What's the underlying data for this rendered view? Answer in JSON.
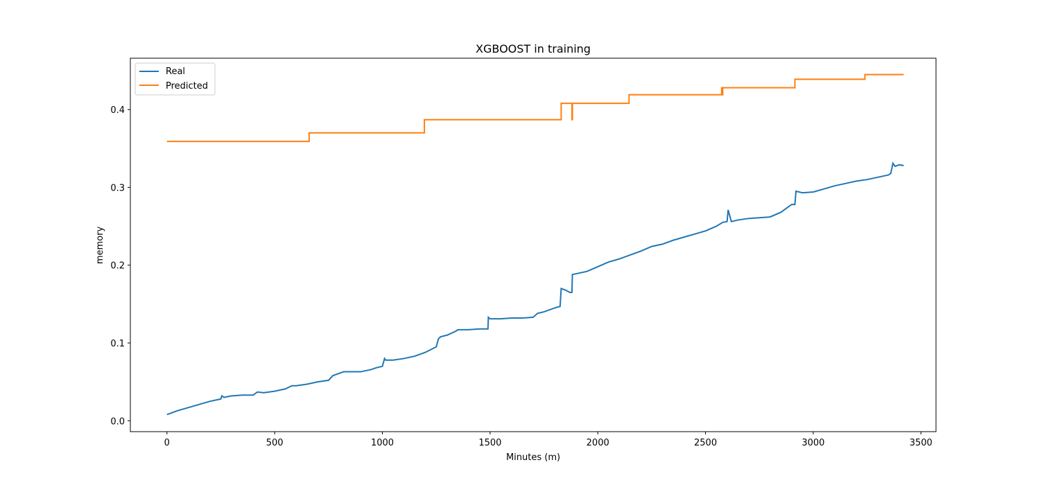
{
  "chart_data": {
    "type": "line",
    "title": "XGBOOST in training",
    "xlabel": "Minutes (m)",
    "ylabel": "memory",
    "xlim": [
      -170,
      3570
    ],
    "ylim": [
      -0.014,
      0.466
    ],
    "xticks": [
      0,
      500,
      1000,
      1500,
      2000,
      2500,
      3000,
      3500
    ],
    "yticks": [
      0.0,
      0.1,
      0.2,
      0.3,
      0.4
    ],
    "xtick_labels": [
      "0",
      "500",
      "1000",
      "1500",
      "2000",
      "2500",
      "3000",
      "3500"
    ],
    "ytick_labels": [
      "0.0",
      "0.1",
      "0.2",
      "0.3",
      "0.4"
    ],
    "grid": false,
    "legend": "upper-left",
    "series": [
      {
        "name": "Real",
        "color": "#1f77b4",
        "x": [
          0,
          50,
          100,
          150,
          200,
          250,
          255,
          265,
          280,
          300,
          350,
          400,
          420,
          450,
          500,
          550,
          580,
          600,
          650,
          700,
          750,
          770,
          790,
          820,
          850,
          900,
          950,
          970,
          1000,
          1010,
          1015,
          1030,
          1050,
          1100,
          1150,
          1200,
          1250,
          1260,
          1270,
          1300,
          1340,
          1350,
          1400,
          1450,
          1490,
          1492,
          1500,
          1550,
          1600,
          1650,
          1700,
          1720,
          1750,
          1800,
          1825,
          1830,
          1850,
          1870,
          1875,
          1880,
          1882,
          1900,
          1950,
          2000,
          2050,
          2100,
          2150,
          2200,
          2250,
          2300,
          2350,
          2400,
          2450,
          2500,
          2550,
          2580,
          2600,
          2605,
          2620,
          2650,
          2700,
          2750,
          2800,
          2850,
          2900,
          2915,
          2920,
          2950,
          3000,
          3050,
          3100,
          3150,
          3200,
          3250,
          3300,
          3350,
          3360,
          3370,
          3380,
          3400,
          3420
        ],
        "values": [
          0.008,
          0.013,
          0.017,
          0.021,
          0.025,
          0.028,
          0.032,
          0.03,
          0.031,
          0.032,
          0.033,
          0.033,
          0.037,
          0.036,
          0.038,
          0.041,
          0.045,
          0.045,
          0.047,
          0.05,
          0.052,
          0.058,
          0.06,
          0.063,
          0.063,
          0.063,
          0.066,
          0.068,
          0.07,
          0.08,
          0.078,
          0.078,
          0.078,
          0.08,
          0.083,
          0.088,
          0.095,
          0.105,
          0.108,
          0.11,
          0.115,
          0.117,
          0.117,
          0.118,
          0.118,
          0.133,
          0.131,
          0.131,
          0.132,
          0.132,
          0.133,
          0.138,
          0.14,
          0.145,
          0.147,
          0.17,
          0.168,
          0.165,
          0.165,
          0.165,
          0.188,
          0.189,
          0.192,
          0.198,
          0.204,
          0.208,
          0.213,
          0.218,
          0.224,
          0.227,
          0.232,
          0.236,
          0.24,
          0.244,
          0.25,
          0.255,
          0.256,
          0.271,
          0.256,
          0.258,
          0.26,
          0.261,
          0.262,
          0.268,
          0.278,
          0.278,
          0.295,
          0.293,
          0.294,
          0.298,
          0.302,
          0.305,
          0.308,
          0.31,
          0.313,
          0.316,
          0.318,
          0.331,
          0.327,
          0.329,
          0.328
        ]
      },
      {
        "name": "Predicted",
        "color": "#ff7f0e",
        "x": [
          0,
          660,
          660,
          1195,
          1195,
          1830,
          1830,
          1880,
          1880,
          1882,
          1882,
          2145,
          2145,
          2575,
          2575,
          2578,
          2578,
          2580,
          2580,
          2915,
          2915,
          3240,
          3240,
          3420
        ],
        "values": [
          0.359,
          0.359,
          0.37,
          0.37,
          0.387,
          0.387,
          0.408,
          0.408,
          0.387,
          0.387,
          0.408,
          0.408,
          0.419,
          0.419,
          0.428,
          0.428,
          0.419,
          0.419,
          0.428,
          0.428,
          0.439,
          0.439,
          0.445,
          0.445
        ]
      }
    ]
  }
}
